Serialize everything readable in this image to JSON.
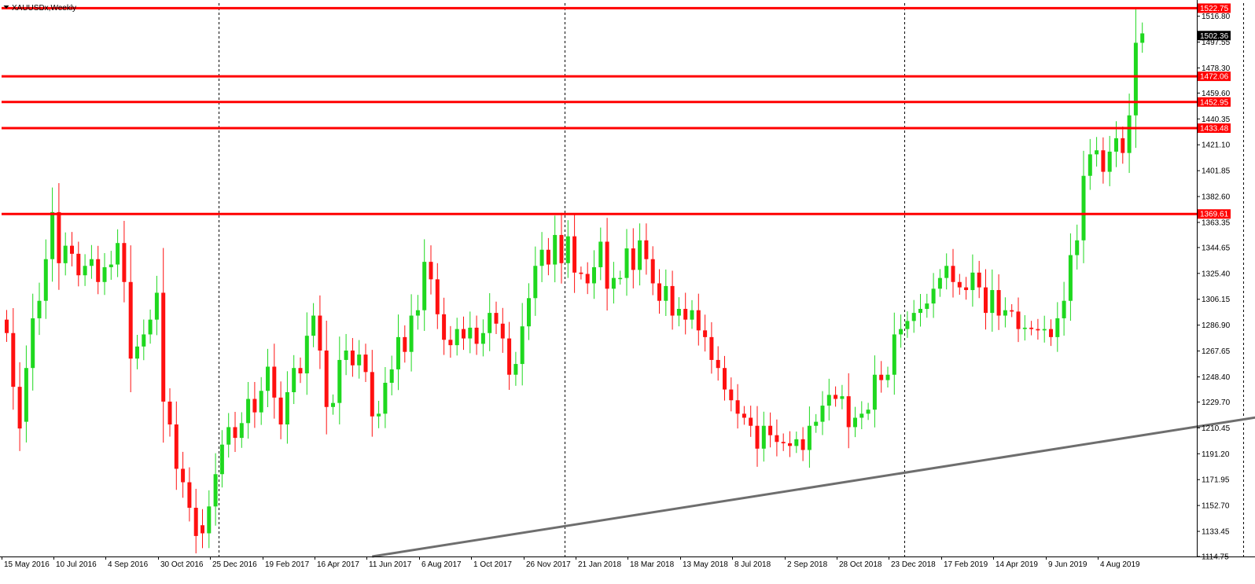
{
  "chart_data": {
    "type": "candlestick",
    "title": "XAUUSDx,Weekly",
    "ylim": [
      1114.75,
      1526.5
    ],
    "colors": {
      "bull": "#1fd81f",
      "bear": "#ff1010",
      "level_line": "#ff0000",
      "trendline": "#6e6e6e",
      "current_price_bg": "#000000",
      "level_label_bg": "#ff0000"
    },
    "y_ticks": [
      "1516.80",
      "1497.55",
      "1478.30",
      "1459.60",
      "1440.35",
      "1421.10",
      "1401.85",
      "1382.60",
      "1363.35",
      "1344.65",
      "1325.40",
      "1306.15",
      "1286.90",
      "1267.65",
      "1248.40",
      "1229.70",
      "1210.45",
      "1191.20",
      "1171.95",
      "1152.70",
      "1133.45",
      "1114.75"
    ],
    "x_ticks": [
      {
        "label": "15 May 2016",
        "index": 0
      },
      {
        "label": "10 Jul 2016",
        "index": 8
      },
      {
        "label": "4 Sep 2016",
        "index": 16
      },
      {
        "label": "30 Oct 2016",
        "index": 24
      },
      {
        "label": "25 Dec 2016",
        "index": 32
      },
      {
        "label": "19 Feb 2017",
        "index": 40
      },
      {
        "label": "16 Apr 2017",
        "index": 48
      },
      {
        "label": "11 Jun 2017",
        "index": 56
      },
      {
        "label": "6 Aug 2017",
        "index": 64
      },
      {
        "label": "1 Oct 2017",
        "index": 72
      },
      {
        "label": "26 Nov 2017",
        "index": 80
      },
      {
        "label": "21 Jan 2018",
        "index": 88
      },
      {
        "label": "18 Mar 2018",
        "index": 96
      },
      {
        "label": "13 May 2018",
        "index": 104
      },
      {
        "label": "8 Jul 2018",
        "index": 112
      },
      {
        "label": "2 Sep 2018",
        "index": 120
      },
      {
        "label": "28 Oct 2018",
        "index": 128
      },
      {
        "label": "23 Dec 2018",
        "index": 136
      },
      {
        "label": "17 Feb 2019",
        "index": 144
      },
      {
        "label": "14 Apr 2019",
        "index": 152
      },
      {
        "label": "9 Jun 2019",
        "index": 160
      },
      {
        "label": "4 Aug 2019",
        "index": 168
      }
    ],
    "horizontal_levels": [
      "1522.75",
      "1472.06",
      "1452.95",
      "1433.48",
      "1369.61"
    ],
    "current_price": "1502.36",
    "period_separators": [
      32.5,
      85.5,
      137.5,
      189.5
    ],
    "trendline": {
      "from": {
        "index": 56,
        "price": 1114.75
      },
      "to": {
        "index": 195,
        "price": 1221
      }
    },
    "closes": [
      1281,
      1241,
      1210,
      1255,
      1292,
      1305,
      1336,
      1371,
      1333,
      1346,
      1340,
      1324,
      1331,
      1336,
      1319,
      1330,
      1332,
      1348,
      1319,
      1262,
      1271,
      1280,
      1291,
      1311,
      1230,
      1213,
      1180,
      1170,
      1151,
      1130,
      1132,
      1152,
      1176,
      1198,
      1211,
      1203,
      1214,
      1232,
      1222,
      1238,
      1256,
      1233,
      1213,
      1237,
      1255,
      1251,
      1279,
      1294,
      1268,
      1226,
      1229,
      1261,
      1268,
      1257,
      1265,
      1252,
      1219,
      1221,
      1244,
      1254,
      1278,
      1267,
      1294,
      1298,
      1334,
      1321,
      1295,
      1276,
      1272,
      1284,
      1277,
      1285,
      1273,
      1281,
      1296,
      1288,
      1277,
      1250,
      1258,
      1286,
      1307,
      1331,
      1343,
      1332,
      1354,
      1333,
      1353,
      1326,
      1325,
      1318,
      1330,
      1349,
      1314,
      1322,
      1322,
      1344,
      1328,
      1350,
      1336,
      1318,
      1305,
      1316,
      1294,
      1299,
      1291,
      1298,
      1283,
      1278,
      1261,
      1255,
      1239,
      1231,
      1221,
      1218,
      1212,
      1195,
      1212,
      1205,
      1200,
      1199,
      1197,
      1202,
      1194,
      1212,
      1215,
      1227,
      1235,
      1232,
      1234,
      1211,
      1218,
      1221,
      1224,
      1250,
      1246,
      1250,
      1280,
      1284,
      1290,
      1296,
      1299,
      1303,
      1314,
      1322,
      1331,
      1319,
      1315,
      1313,
      1326,
      1315,
      1296,
      1313,
      1294,
      1298,
      1297,
      1284,
      1285,
      1284,
      1283,
      1284,
      1278,
      1292,
      1305,
      1339,
      1350,
      1398,
      1414,
      1417,
      1401,
      1416,
      1426,
      1415,
      1443,
      1497,
      1504
    ],
    "opens": [
      1291,
      1281,
      1241,
      1215,
      1255,
      1292,
      1305,
      1336,
      1371,
      1333,
      1346,
      1340,
      1324,
      1331,
      1336,
      1319,
      1330,
      1332,
      1348,
      1319,
      1262,
      1271,
      1280,
      1291,
      1311,
      1230,
      1213,
      1180,
      1170,
      1151,
      1138,
      1132,
      1152,
      1176,
      1198,
      1211,
      1203,
      1214,
      1232,
      1222,
      1238,
      1256,
      1233,
      1213,
      1237,
      1255,
      1251,
      1279,
      1294,
      1268,
      1226,
      1229,
      1261,
      1268,
      1257,
      1265,
      1252,
      1219,
      1221,
      1244,
      1254,
      1278,
      1267,
      1294,
      1298,
      1334,
      1321,
      1295,
      1276,
      1272,
      1284,
      1277,
      1285,
      1273,
      1281,
      1296,
      1288,
      1277,
      1250,
      1258,
      1286,
      1307,
      1331,
      1343,
      1332,
      1354,
      1333,
      1353,
      1326,
      1325,
      1318,
      1330,
      1349,
      1314,
      1322,
      1322,
      1344,
      1328,
      1350,
      1336,
      1318,
      1305,
      1316,
      1294,
      1299,
      1291,
      1298,
      1283,
      1278,
      1261,
      1255,
      1239,
      1231,
      1221,
      1218,
      1212,
      1195,
      1212,
      1205,
      1200,
      1199,
      1197,
      1202,
      1194,
      1212,
      1215,
      1227,
      1235,
      1232,
      1234,
      1211,
      1218,
      1221,
      1224,
      1250,
      1246,
      1250,
      1280,
      1284,
      1290,
      1296,
      1299,
      1303,
      1314,
      1322,
      1331,
      1319,
      1315,
      1313,
      1326,
      1315,
      1296,
      1313,
      1294,
      1298,
      1297,
      1284,
      1285,
      1284,
      1283,
      1284,
      1278,
      1292,
      1305,
      1339,
      1350,
      1398,
      1414,
      1417,
      1401,
      1416,
      1426,
      1415,
      1443,
      1497
    ]
  }
}
